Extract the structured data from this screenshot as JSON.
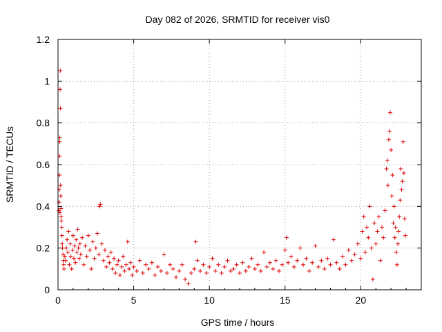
{
  "chart_data": {
    "type": "scatter",
    "title": "Day 082 of 2026, SRMTID for receiver vis0",
    "xlabel": "GPS time / hours",
    "ylabel": "SRMTID / TECUs",
    "xlim": [
      0,
      24
    ],
    "ylim": [
      0,
      1.2
    ],
    "x_ticks": [
      0,
      5,
      10,
      15,
      20
    ],
    "x_tick_labels": [
      "0",
      "5",
      "10",
      "15",
      "20"
    ],
    "y_ticks": [
      0,
      0.2,
      0.4,
      0.6,
      0.8,
      1,
      1.2
    ],
    "y_tick_labels": [
      "0",
      "0.2",
      "0.4",
      "0.6",
      "0.8",
      "1",
      "1.2"
    ],
    "grid": true,
    "marker": "+",
    "color": "#dd0000",
    "series": [
      {
        "name": "SRMTID",
        "points": [
          [
            0.05,
            0.38
          ],
          [
            0.07,
            0.42
          ],
          [
            0.08,
            0.48
          ],
          [
            0.09,
            0.55
          ],
          [
            0.1,
            0.64
          ],
          [
            0.11,
            0.71
          ],
          [
            0.12,
            0.73
          ],
          [
            0.13,
            0.37
          ],
          [
            0.14,
            0.96
          ],
          [
            0.15,
            1.05
          ],
          [
            0.16,
            0.87
          ],
          [
            0.17,
            0.5
          ],
          [
            0.18,
            0.45
          ],
          [
            0.19,
            0.39
          ],
          [
            0.2,
            0.35
          ],
          [
            0.22,
            0.33
          ],
          [
            0.24,
            0.3
          ],
          [
            0.26,
            0.26
          ],
          [
            0.28,
            0.22
          ],
          [
            0.3,
            0.2
          ],
          [
            0.33,
            0.17
          ],
          [
            0.35,
            0.14
          ],
          [
            0.38,
            0.12
          ],
          [
            0.4,
            0.1
          ],
          [
            0.45,
            0.16
          ],
          [
            0.5,
            0.14
          ],
          [
            0.55,
            0.2
          ],
          [
            0.6,
            0.24
          ],
          [
            0.65,
            0.18
          ],
          [
            0.7,
            0.28
          ],
          [
            0.75,
            0.12
          ],
          [
            0.8,
            0.22
          ],
          [
            0.85,
            0.16
          ],
          [
            0.9,
            0.1
          ],
          [
            0.95,
            0.19
          ],
          [
            1.0,
            0.26
          ],
          [
            1.05,
            0.15
          ],
          [
            1.1,
            0.21
          ],
          [
            1.15,
            0.13
          ],
          [
            1.2,
            0.24
          ],
          [
            1.25,
            0.18
          ],
          [
            1.3,
            0.29
          ],
          [
            1.35,
            0.2
          ],
          [
            1.4,
            0.15
          ],
          [
            1.45,
            0.22
          ],
          [
            1.5,
            0.17
          ],
          [
            1.6,
            0.25
          ],
          [
            1.7,
            0.12
          ],
          [
            1.8,
            0.21
          ],
          [
            1.9,
            0.16
          ],
          [
            2.0,
            0.26
          ],
          [
            2.1,
            0.19
          ],
          [
            2.2,
            0.1
          ],
          [
            2.3,
            0.23
          ],
          [
            2.4,
            0.15
          ],
          [
            2.5,
            0.2
          ],
          [
            2.6,
            0.27
          ],
          [
            2.7,
            0.17
          ],
          [
            2.75,
            0.4
          ],
          [
            2.8,
            0.41
          ],
          [
            2.9,
            0.22
          ],
          [
            3.0,
            0.14
          ],
          [
            3.1,
            0.19
          ],
          [
            3.2,
            0.11
          ],
          [
            3.3,
            0.16
          ],
          [
            3.4,
            0.13
          ],
          [
            3.5,
            0.18
          ],
          [
            3.6,
            0.1
          ],
          [
            3.7,
            0.15
          ],
          [
            3.8,
            0.08
          ],
          [
            3.9,
            0.12
          ],
          [
            4.0,
            0.14
          ],
          [
            4.1,
            0.07
          ],
          [
            4.2,
            0.11
          ],
          [
            4.3,
            0.16
          ],
          [
            4.4,
            0.09
          ],
          [
            4.5,
            0.12
          ],
          [
            4.6,
            0.23
          ],
          [
            4.7,
            0.1
          ],
          [
            4.8,
            0.13
          ],
          [
            4.9,
            0.07
          ],
          [
            5.0,
            0.11
          ],
          [
            5.2,
            0.09
          ],
          [
            5.4,
            0.14
          ],
          [
            5.6,
            0.08
          ],
          [
            5.8,
            0.12
          ],
          [
            6.0,
            0.1
          ],
          [
            6.2,
            0.13
          ],
          [
            6.4,
            0.07
          ],
          [
            6.6,
            0.11
          ],
          [
            6.8,
            0.09
          ],
          [
            7.0,
            0.17
          ],
          [
            7.2,
            0.08
          ],
          [
            7.4,
            0.12
          ],
          [
            7.6,
            0.1
          ],
          [
            7.8,
            0.06
          ],
          [
            8.0,
            0.09
          ],
          [
            8.2,
            0.12
          ],
          [
            8.4,
            0.05
          ],
          [
            8.6,
            0.03
          ],
          [
            8.8,
            0.08
          ],
          [
            9.0,
            0.1
          ],
          [
            9.1,
            0.23
          ],
          [
            9.2,
            0.14
          ],
          [
            9.4,
            0.09
          ],
          [
            9.6,
            0.12
          ],
          [
            9.8,
            0.08
          ],
          [
            10.0,
            0.11
          ],
          [
            10.2,
            0.15
          ],
          [
            10.4,
            0.09
          ],
          [
            10.6,
            0.12
          ],
          [
            10.8,
            0.08
          ],
          [
            11.0,
            0.11
          ],
          [
            11.2,
            0.14
          ],
          [
            11.4,
            0.09
          ],
          [
            11.6,
            0.1
          ],
          [
            11.8,
            0.12
          ],
          [
            12.0,
            0.08
          ],
          [
            12.2,
            0.13
          ],
          [
            12.4,
            0.09
          ],
          [
            12.6,
            0.11
          ],
          [
            12.8,
            0.15
          ],
          [
            13.0,
            0.1
          ],
          [
            13.2,
            0.12
          ],
          [
            13.4,
            0.09
          ],
          [
            13.6,
            0.18
          ],
          [
            13.8,
            0.11
          ],
          [
            14.0,
            0.13
          ],
          [
            14.2,
            0.1
          ],
          [
            14.4,
            0.14
          ],
          [
            14.6,
            0.09
          ],
          [
            14.8,
            0.12
          ],
          [
            15.0,
            0.19
          ],
          [
            15.1,
            0.25
          ],
          [
            15.2,
            0.13
          ],
          [
            15.4,
            0.16
          ],
          [
            15.6,
            0.11
          ],
          [
            15.8,
            0.14
          ],
          [
            16.0,
            0.2
          ],
          [
            16.2,
            0.12
          ],
          [
            16.4,
            0.15
          ],
          [
            16.6,
            0.09
          ],
          [
            16.8,
            0.13
          ],
          [
            17.0,
            0.21
          ],
          [
            17.2,
            0.11
          ],
          [
            17.4,
            0.14
          ],
          [
            17.6,
            0.1
          ],
          [
            17.8,
            0.15
          ],
          [
            18.0,
            0.12
          ],
          [
            18.2,
            0.24
          ],
          [
            18.4,
            0.13
          ],
          [
            18.6,
            0.1
          ],
          [
            18.8,
            0.16
          ],
          [
            19.0,
            0.12
          ],
          [
            19.2,
            0.19
          ],
          [
            19.4,
            0.14
          ],
          [
            19.6,
            0.17
          ],
          [
            19.8,
            0.22
          ],
          [
            20.0,
            0.15
          ],
          [
            20.1,
            0.28
          ],
          [
            20.2,
            0.35
          ],
          [
            20.3,
            0.18
          ],
          [
            20.4,
            0.3
          ],
          [
            20.5,
            0.25
          ],
          [
            20.6,
            0.4
          ],
          [
            20.7,
            0.2
          ],
          [
            20.8,
            0.05
          ],
          [
            20.9,
            0.32
          ],
          [
            21.0,
            0.22
          ],
          [
            21.1,
            0.28
          ],
          [
            21.2,
            0.35
          ],
          [
            21.3,
            0.14
          ],
          [
            21.4,
            0.3
          ],
          [
            21.5,
            0.25
          ],
          [
            21.6,
            0.38
          ],
          [
            21.7,
            0.58
          ],
          [
            21.75,
            0.62
          ],
          [
            21.8,
            0.5
          ],
          [
            21.85,
            0.72
          ],
          [
            21.9,
            0.76
          ],
          [
            21.95,
            0.85
          ],
          [
            22.0,
            0.67
          ],
          [
            22.05,
            0.45
          ],
          [
            22.1,
            0.55
          ],
          [
            22.15,
            0.32
          ],
          [
            22.2,
            0.4
          ],
          [
            22.25,
            0.25
          ],
          [
            22.3,
            0.3
          ],
          [
            22.35,
            0.18
          ],
          [
            22.4,
            0.12
          ],
          [
            22.45,
            0.22
          ],
          [
            22.5,
            0.28
          ],
          [
            22.55,
            0.35
          ],
          [
            22.6,
            0.43
          ],
          [
            22.65,
            0.58
          ],
          [
            22.7,
            0.48
          ],
          [
            22.75,
            0.52
          ],
          [
            22.8,
            0.71
          ],
          [
            22.85,
            0.56
          ],
          [
            22.9,
            0.34
          ],
          [
            22.95,
            0.26
          ]
        ]
      }
    ]
  }
}
